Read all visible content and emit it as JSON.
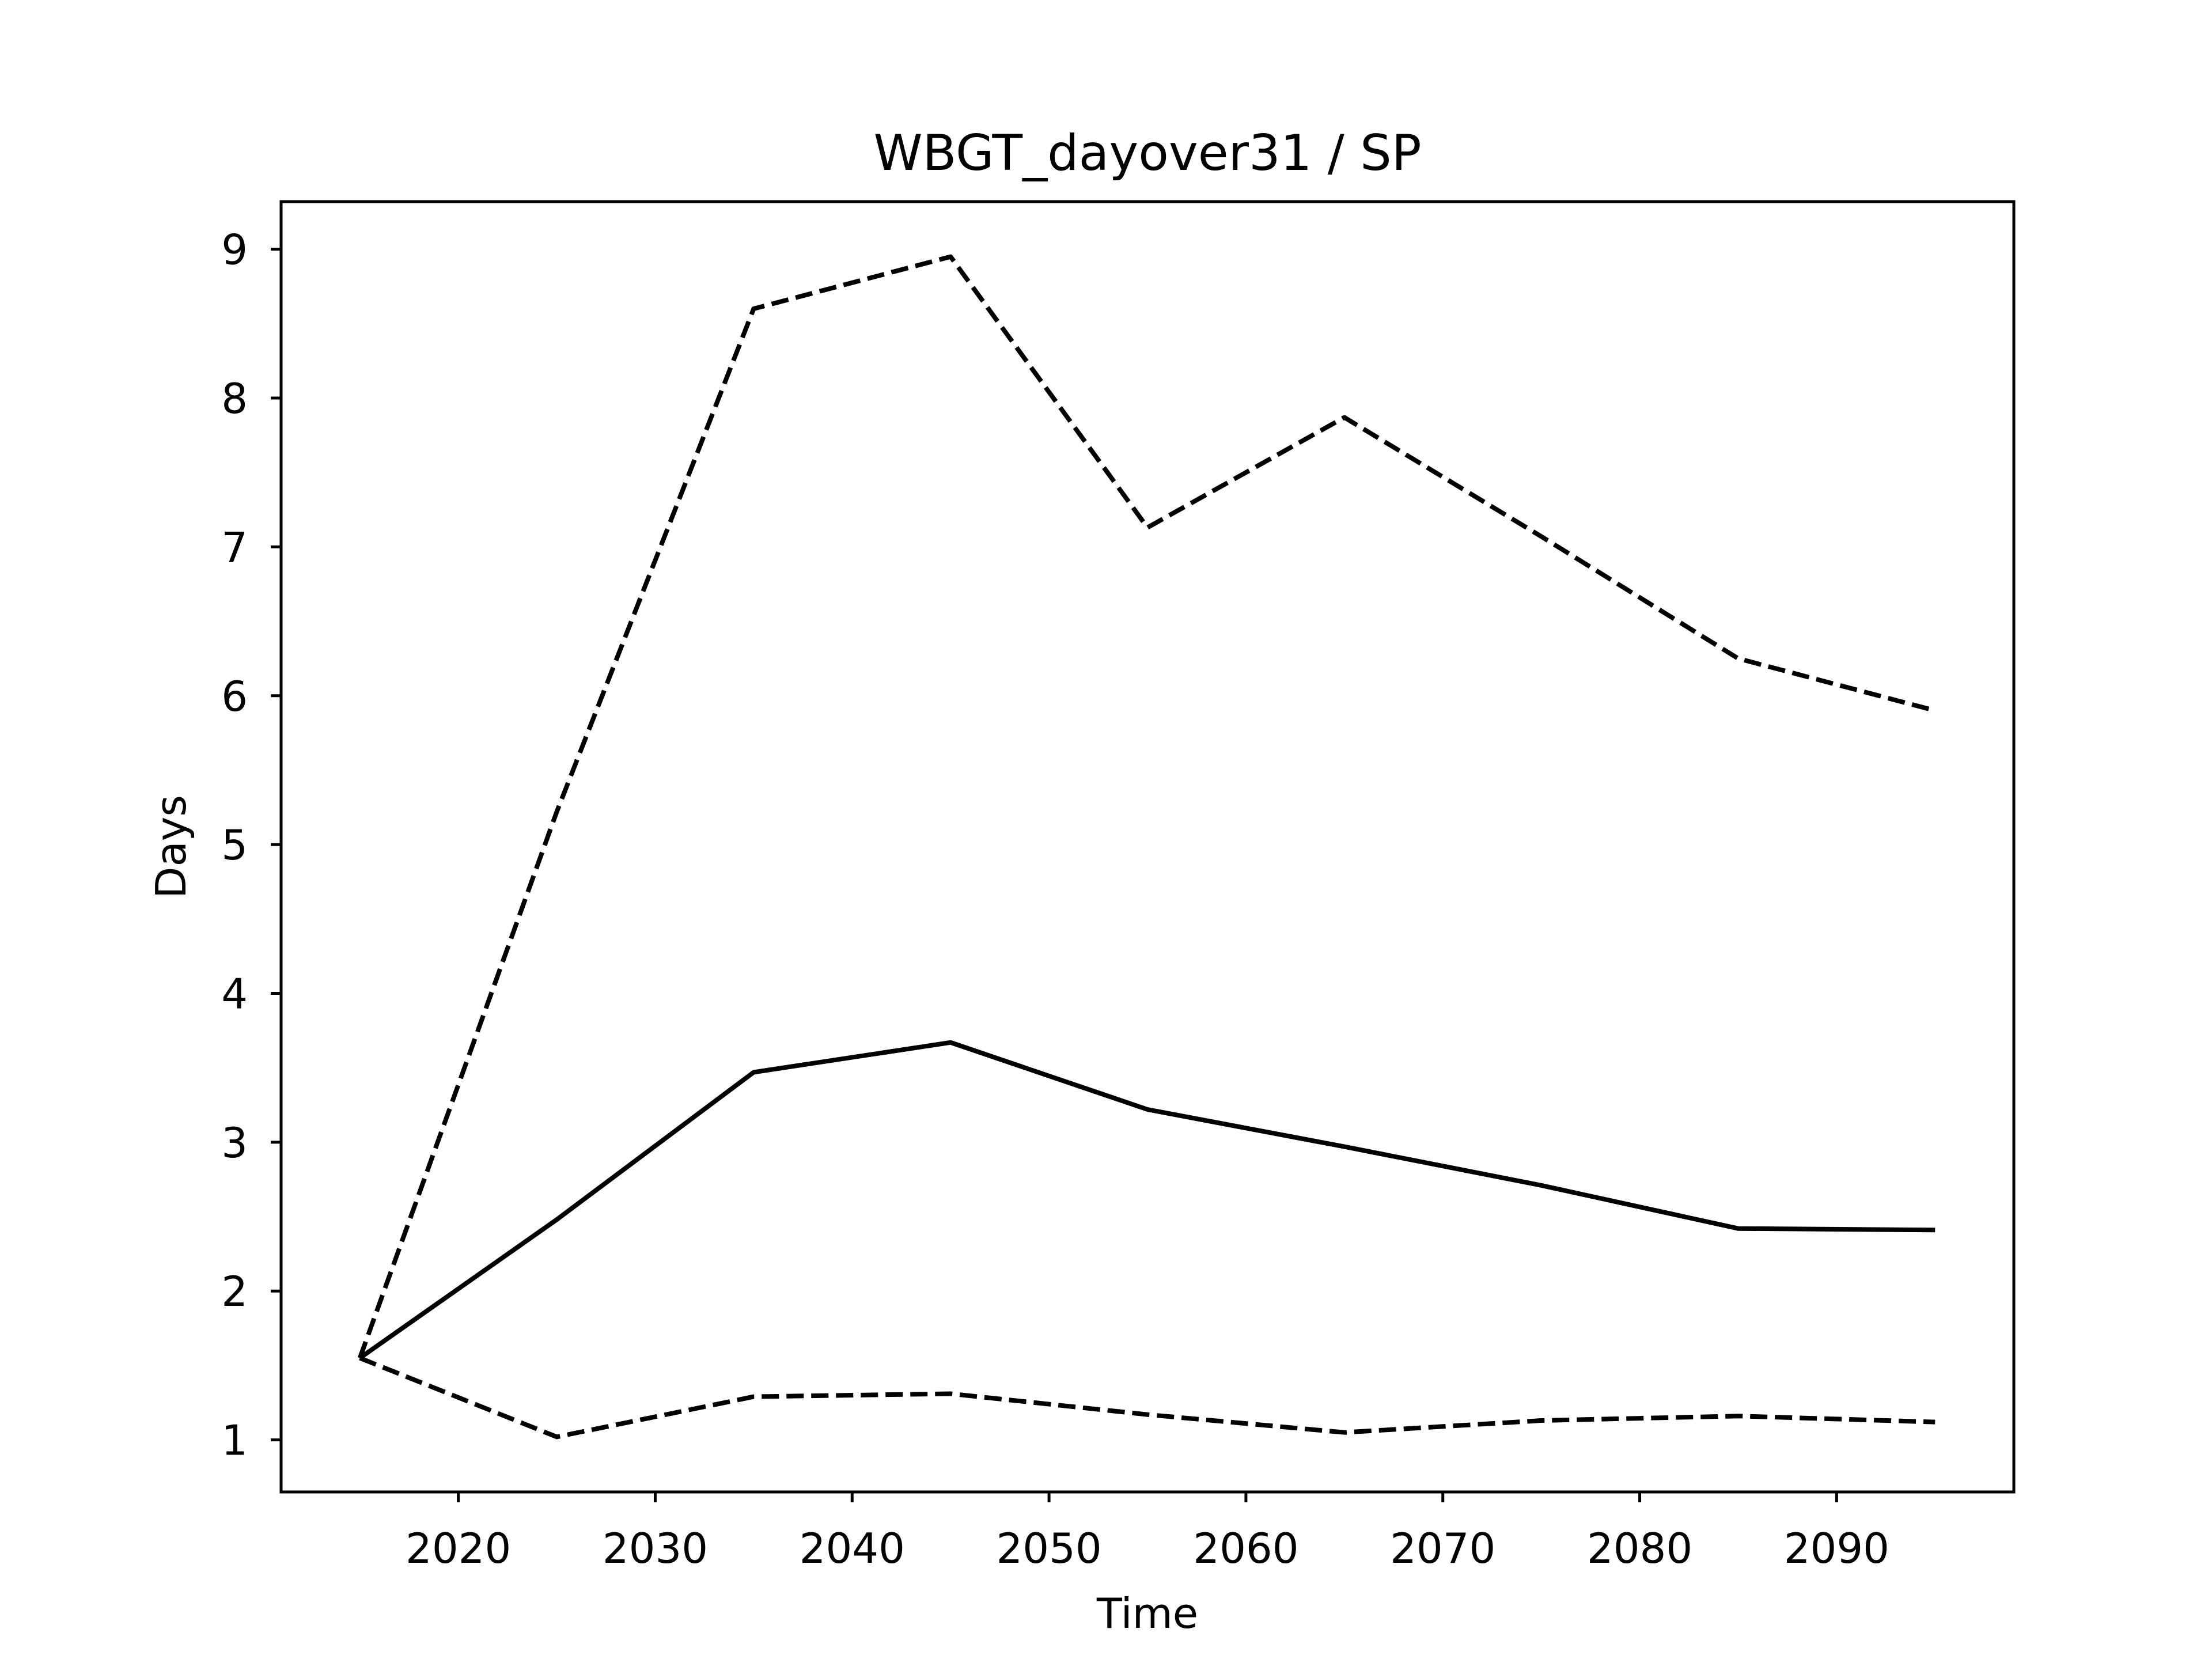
{
  "chart_data": {
    "type": "line",
    "title": "WBGT_dayover31 / SP",
    "xlabel": "Time",
    "ylabel": "Days",
    "xlim": [
      2011,
      2099
    ],
    "ylim": [
      0.65,
      9.32
    ],
    "xticks": [
      2020,
      2030,
      2040,
      2050,
      2060,
      2070,
      2080,
      2090
    ],
    "xtick_labels": [
      "2020",
      "2030",
      "2040",
      "2050",
      "2060",
      "2070",
      "2080",
      "2090"
    ],
    "yticks": [
      1,
      2,
      3,
      4,
      5,
      6,
      7,
      8,
      9
    ],
    "ytick_labels": [
      "1",
      "2",
      "3",
      "4",
      "5",
      "6",
      "7",
      "8",
      "9"
    ],
    "grid": false,
    "legend": "none",
    "x": [
      2015,
      2025,
      2035,
      2045,
      2055,
      2065,
      2075,
      2085,
      2095
    ],
    "series": [
      {
        "style": "solid",
        "color": "#000000",
        "values": [
          1.55,
          2.48,
          3.47,
          3.67,
          3.22,
          2.97,
          2.71,
          2.42,
          2.41
        ]
      },
      {
        "style": "dashed",
        "color": "#000000",
        "values": [
          1.55,
          5.22,
          8.6,
          8.95,
          7.13,
          7.87,
          7.07,
          6.25,
          5.9
        ]
      },
      {
        "style": "dashed",
        "color": "#000000",
        "values": [
          1.55,
          1.02,
          1.29,
          1.31,
          1.17,
          1.05,
          1.13,
          1.16,
          1.12
        ]
      }
    ]
  }
}
